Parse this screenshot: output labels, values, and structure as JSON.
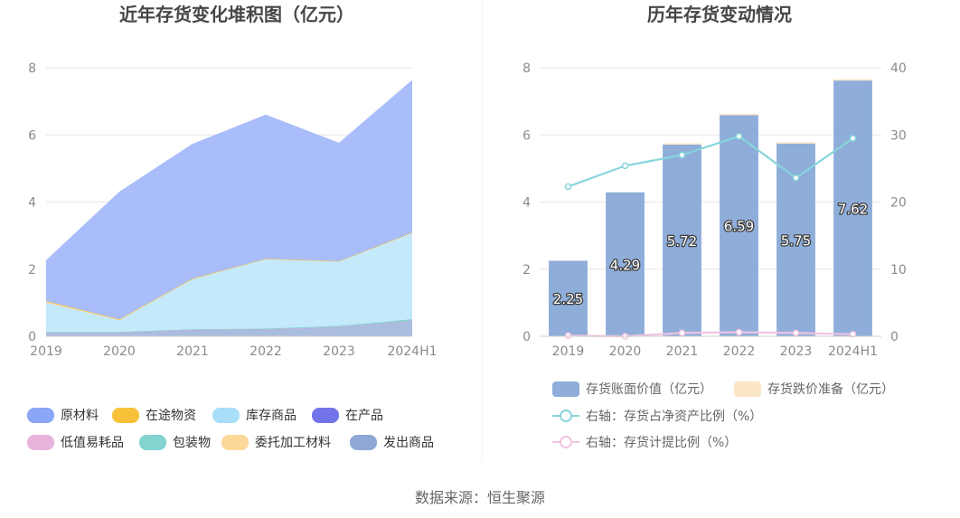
{
  "left_chart": {
    "title": "近年存货变化堆积图（亿元）",
    "legend": [
      {
        "label": "原材料",
        "color": "#8aa6f7"
      },
      {
        "label": "在途物资",
        "color": "#f7c23a"
      },
      {
        "label": "库存商品",
        "color": "#a8def8"
      },
      {
        "label": "在产品",
        "color": "#7474ea"
      },
      {
        "label": "低值易耗品",
        "color": "#e8b4dc"
      },
      {
        "label": "包装物",
        "color": "#83d3d1"
      },
      {
        "label": "委托加工材料",
        "color": "#fcd899"
      },
      {
        "label": "发出商品",
        "color": "#8fa8d6"
      }
    ]
  },
  "right_chart": {
    "title": "历年存货变动情况",
    "legend": [
      {
        "label": "存货账面价值（亿元）",
        "color": "#8eadd9"
      },
      {
        "label": "存货跌价准备（亿元）",
        "color": "#fbe6c6"
      },
      {
        "label": "右轴：存货占净资产比例（%）",
        "color": "#88d5dc"
      },
      {
        "label": "右轴：存货计提比例（%）",
        "color": "#f1c3e2"
      }
    ]
  },
  "chart_data": [
    {
      "type": "area",
      "stacked": true,
      "title": "近年存货变化堆积图（亿元）",
      "categories": [
        "2019",
        "2020",
        "2021",
        "2022",
        "2023",
        "2024H1"
      ],
      "ylim": [
        0,
        8
      ],
      "yticks": [
        0,
        2,
        4,
        6,
        8
      ],
      "series": [
        {
          "name": "发出商品",
          "color": "#a9bddf",
          "values": [
            0.1,
            0.1,
            0.18,
            0.2,
            0.27,
            0.45
          ]
        },
        {
          "name": "在产品",
          "color": "#7474ea",
          "values": [
            0.01,
            0.01,
            0.01,
            0.01,
            0.01,
            0.01
          ]
        },
        {
          "name": "低值易耗品",
          "color": "#e8b4dc",
          "values": [
            0.0,
            0.0,
            0.0,
            0.0,
            0.0,
            0.0
          ]
        },
        {
          "name": "包装物",
          "color": "#83d3d1",
          "values": [
            0.02,
            0.02,
            0.02,
            0.02,
            0.03,
            0.05
          ]
        },
        {
          "name": "库存商品",
          "color": "#c4e9fb",
          "values": [
            0.87,
            0.35,
            1.49,
            2.07,
            1.92,
            2.57
          ]
        },
        {
          "name": "委托加工材料",
          "color": "#fcd899",
          "values": [
            0.05,
            0.03,
            0.02,
            0.01,
            0.01,
            0.01
          ]
        },
        {
          "name": "在途物资",
          "color": "#f7c23a",
          "values": [
            0.0,
            0.0,
            0.0,
            0.0,
            0.0,
            0.0
          ]
        },
        {
          "name": "原材料",
          "color": "#a9bdfa",
          "values": [
            1.2,
            3.78,
            4.0,
            4.28,
            3.51,
            4.53
          ]
        }
      ]
    },
    {
      "type": "bar",
      "title": "历年存货变动情况",
      "categories": [
        "2019",
        "2020",
        "2021",
        "2022",
        "2023",
        "2024H1"
      ],
      "ylim": [
        0,
        8
      ],
      "yticks": [
        0,
        2,
        4,
        6,
        8
      ],
      "y2lim": [
        0,
        40
      ],
      "y2ticks": [
        0,
        10,
        20,
        30,
        40
      ],
      "series": [
        {
          "name": "存货账面价值（亿元）",
          "axis": "left",
          "kind": "bar",
          "color": "#8eadd9",
          "values": [
            2.25,
            4.29,
            5.72,
            6.59,
            5.75,
            7.62
          ],
          "labels": [
            "2.25",
            "4.29",
            "5.72",
            "6.59",
            "5.75",
            "7.62"
          ]
        },
        {
          "name": "存货跌价准备（亿元）",
          "axis": "left",
          "kind": "bar",
          "color": "#fbe6c6",
          "values": [
            0.0,
            0.0,
            0.03,
            0.04,
            0.03,
            0.04
          ]
        },
        {
          "name": "右轴：存货占净资产比例（%）",
          "axis": "right",
          "kind": "line",
          "color": "#88d5dc",
          "values": [
            22.3,
            25.4,
            27.0,
            29.8,
            23.6,
            29.5
          ]
        },
        {
          "name": "右轴：存货计提比例（%）",
          "axis": "right",
          "kind": "line",
          "color": "#f1c3e2",
          "values": [
            0.1,
            0.0,
            0.5,
            0.6,
            0.5,
            0.3
          ]
        }
      ]
    }
  ],
  "footer": {
    "source": "数据来源：恒生聚源"
  }
}
